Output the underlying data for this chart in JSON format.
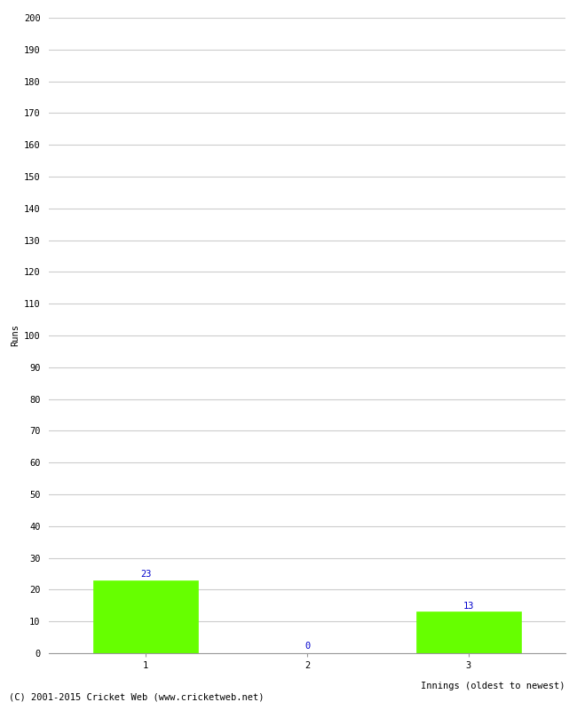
{
  "categories": [
    "1",
    "2",
    "3"
  ],
  "values": [
    23,
    0,
    13
  ],
  "bar_color": "#66ff00",
  "bar_edge_color": "#66ff00",
  "ylabel": "Runs",
  "xlabel": "Innings (oldest to newest)",
  "ylim": [
    0,
    200
  ],
  "yticks": [
    0,
    10,
    20,
    30,
    40,
    50,
    60,
    70,
    80,
    90,
    100,
    110,
    120,
    130,
    140,
    150,
    160,
    170,
    180,
    190,
    200
  ],
  "label_color": "#0000cc",
  "label_fontsize": 7.5,
  "grid_color": "#cccccc",
  "background_color": "#ffffff",
  "footer_text": "(C) 2001-2015 Cricket Web (www.cricketweb.net)",
  "footer_fontsize": 7.5,
  "axis_label_fontsize": 7.5,
  "tick_fontsize": 7.5,
  "bar_width": 0.65,
  "xlabel_fontsize": 7.5
}
